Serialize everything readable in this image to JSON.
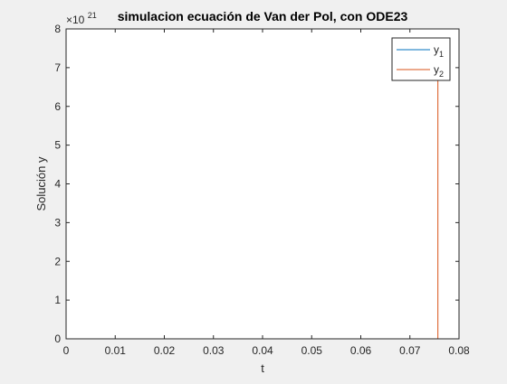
{
  "chart_data": {
    "type": "line",
    "title": "simulacion ecuación de Van der Pol, con ODE23",
    "xlabel": "t",
    "ylabel": "Solución y",
    "xlim": [
      0,
      0.08
    ],
    "ylim": [
      0,
      8
    ],
    "y_exponent_label": "×10",
    "y_exponent_value": "21",
    "x_ticks": [
      0,
      0.01,
      0.02,
      0.03,
      0.04,
      0.05,
      0.06,
      0.07,
      0.08
    ],
    "x_tick_labels": [
      "0",
      "0.01",
      "0.02",
      "0.03",
      "0.04",
      "0.05",
      "0.06",
      "0.07",
      "0.08"
    ],
    "y_ticks": [
      0,
      1,
      2,
      3,
      4,
      5,
      6,
      7,
      8
    ],
    "y_tick_labels": [
      "0",
      "1",
      "2",
      "3",
      "4",
      "5",
      "6",
      "7",
      "8"
    ],
    "grid": false,
    "legend_placement": "top-right",
    "series": [
      {
        "name": "y",
        "name_sub": "1",
        "color": "#0072BD",
        "x": [
          0,
          0.0756
        ],
        "y": [
          0,
          0
        ]
      },
      {
        "name": "y",
        "name_sub": "2",
        "color": "#D95319",
        "x": [
          0,
          0.0756,
          0.0757,
          0.0757
        ],
        "y": [
          0,
          0,
          0,
          7.3
        ]
      }
    ]
  }
}
